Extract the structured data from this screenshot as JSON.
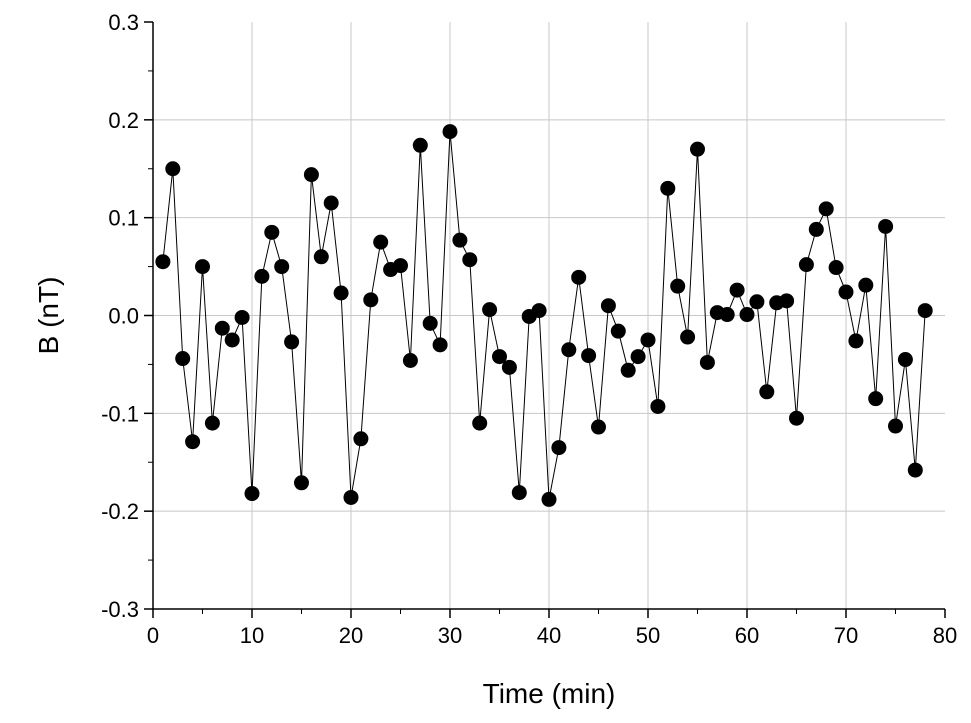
{
  "chart_data": {
    "type": "line",
    "markers": "filled-circle",
    "title": "",
    "xlabel": "Time (min)",
    "ylabel": "B (nT)",
    "xlim": [
      0,
      80
    ],
    "ylim": [
      -0.3,
      0.3
    ],
    "x_ticks": [
      0,
      10,
      20,
      30,
      40,
      50,
      60,
      70,
      80
    ],
    "x_tick_labels": [
      "0",
      "10",
      "20",
      "30",
      "40",
      "50",
      "60",
      "70",
      "80"
    ],
    "y_ticks": [
      -0.3,
      -0.2,
      -0.1,
      0.0,
      0.1,
      0.2,
      0.3
    ],
    "y_tick_labels": [
      "-0.3",
      "-0.2",
      "-0.1",
      "0.0",
      "0.1",
      "0.2",
      "0.3"
    ],
    "grid": true,
    "legend": "none",
    "colors": {
      "line": "#000000",
      "marker": "#000000",
      "grid": "#c8c8c8"
    },
    "series": [
      {
        "x": [
          1,
          2,
          3,
          4,
          5,
          6,
          7,
          8,
          9,
          10,
          11,
          12,
          13,
          14,
          15,
          16,
          17,
          18,
          19,
          20,
          21,
          22,
          23,
          24,
          25,
          26,
          27,
          28,
          29,
          30,
          31,
          32,
          33,
          34,
          35,
          36,
          37,
          38,
          39,
          40,
          41,
          42,
          43,
          44,
          45,
          46,
          47,
          48,
          49,
          50,
          51,
          52,
          53,
          54,
          55,
          56,
          57,
          58,
          59,
          60,
          61,
          62,
          63,
          64,
          65,
          66,
          67,
          68,
          69,
          70,
          71,
          72,
          73,
          74,
          75,
          76,
          77,
          78
        ],
        "y": [
          0.055,
          0.15,
          -0.044,
          -0.129,
          0.05,
          -0.11,
          -0.013,
          -0.025,
          -0.002,
          -0.182,
          0.04,
          0.085,
          0.05,
          -0.027,
          -0.171,
          0.144,
          0.06,
          0.115,
          0.023,
          -0.186,
          -0.126,
          0.016,
          0.075,
          0.047,
          0.051,
          -0.046,
          0.174,
          -0.008,
          -0.03,
          0.188,
          0.077,
          0.057,
          -0.11,
          0.006,
          -0.042,
          -0.053,
          -0.181,
          -0.001,
          0.005,
          -0.188,
          -0.135,
          -0.035,
          0.039,
          -0.041,
          -0.114,
          0.01,
          -0.016,
          -0.056,
          -0.042,
          -0.025,
          -0.093,
          0.13,
          0.03,
          -0.022,
          0.17,
          -0.048,
          0.003,
          0.001,
          0.026,
          0.001,
          0.014,
          -0.078,
          0.013,
          0.015,
          -0.105,
          0.052,
          0.088,
          0.109,
          0.049,
          0.024,
          -0.026,
          0.031,
          -0.085,
          0.091,
          -0.113,
          -0.045,
          -0.158,
          0.005
        ]
      }
    ]
  }
}
